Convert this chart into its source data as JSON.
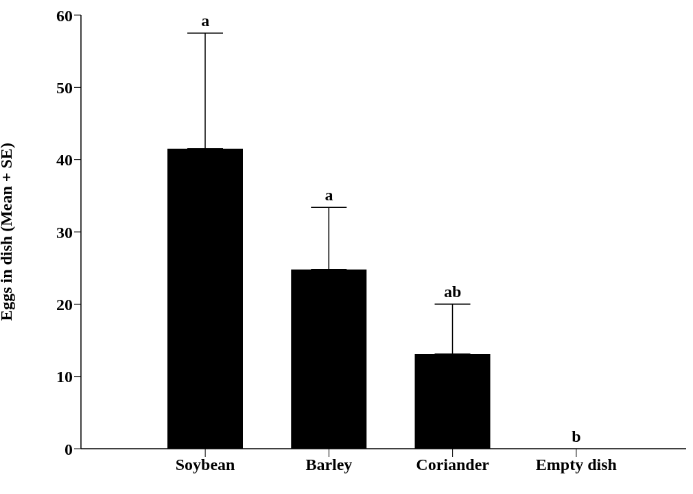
{
  "chart_data": {
    "type": "bar",
    "ylabel": "Eggs in dish (Mean + SE)",
    "categories": [
      "Soybean",
      "Barley",
      "Coriander",
      "Empty dish"
    ],
    "values": [
      41.5,
      24.8,
      13.1,
      0
    ],
    "color": "#000000",
    "errors": [
      [
        41.5,
        57.5
      ],
      [
        24.8,
        33.4
      ],
      [
        13.1,
        20.0
      ],
      null
    ],
    "ylim": [
      0,
      60
    ],
    "yticks": [
      0,
      10,
      20,
      30,
      40,
      50,
      60
    ],
    "grid": false,
    "legend": false,
    "annotations": [
      {
        "text": "a",
        "x": "Soybean",
        "y": 57.5
      },
      {
        "text": "a",
        "x": "Barley",
        "y": 33.4
      },
      {
        "text": "ab",
        "x": "Coriander",
        "y": 20.0
      },
      {
        "text": "b",
        "x": "Empty dish",
        "y": 0
      }
    ]
  }
}
